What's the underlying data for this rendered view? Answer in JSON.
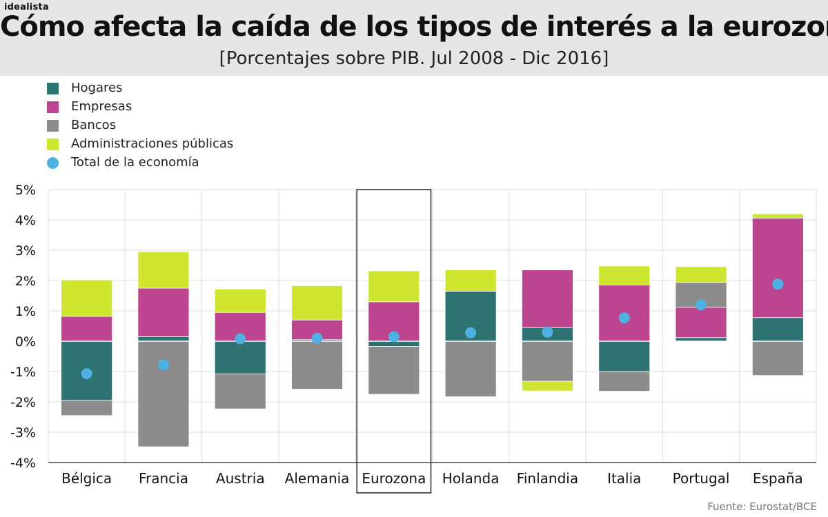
{
  "brand": "idealista",
  "header": {
    "title": "Cómo afecta la caída de los tipos de interés a la eurozona",
    "subtitle": "[Porcentajes sobre PIB. Jul 2008 - Dic 2016]"
  },
  "source": "Fuente: Eurostat/BCE",
  "colors": {
    "hogares": "#2e7372",
    "empresas": "#bd448f",
    "bancos": "#8c8c8c",
    "administraciones": "#cfe631",
    "total": "#4fb0e2",
    "grid": "#dddddd",
    "axis": "#222222"
  },
  "legend": [
    {
      "label": "Hogares",
      "color_key": "hogares",
      "shape": "square"
    },
    {
      "label": "Empresas",
      "color_key": "empresas",
      "shape": "square"
    },
    {
      "label": "Bancos",
      "color_key": "bancos",
      "shape": "square"
    },
    {
      "label": "Administraciones públicas",
      "color_key": "administraciones",
      "shape": "square"
    },
    {
      "label": "Total de la economía",
      "color_key": "total",
      "shape": "dot"
    }
  ],
  "chart_data": {
    "type": "bar",
    "stacked": true,
    "title": "Cómo afecta la caída de los tipos de interés a la eurozona",
    "subtitle": "[Porcentajes sobre PIB. Jul 2008 - Dic 2016]",
    "xlabel": "",
    "ylabel": "",
    "ylim": [
      -4,
      5
    ],
    "yticks": [
      -4,
      -3,
      -2,
      -1,
      0,
      1,
      2,
      3,
      4,
      5
    ],
    "ytick_labels": [
      "-4%",
      "-3%",
      "-2%",
      "-1%",
      "0%",
      "1%",
      "2%",
      "3%",
      "4%",
      "5%"
    ],
    "grid": true,
    "highlighted_category": "Eurozona",
    "categories": [
      "Bélgica",
      "Francia",
      "Austria",
      "Alemania",
      "Eurozona",
      "Holanda",
      "Finlandia",
      "Italia",
      "Portugal",
      "España"
    ],
    "series": [
      {
        "name": "Hogares",
        "color_key": "hogares",
        "values": [
          -1.95,
          0.15,
          -1.08,
          0.05,
          -0.17,
          1.65,
          0.45,
          -1.0,
          0.12,
          0.78
        ]
      },
      {
        "name": "Empresas",
        "color_key": "empresas",
        "values": [
          0.82,
          1.6,
          0.95,
          0.65,
          1.3,
          0.0,
          1.9,
          1.85,
          1.0,
          3.28
        ]
      },
      {
        "name": "Bancos",
        "color_key": "bancos",
        "values": [
          -0.5,
          -3.48,
          -1.15,
          -1.58,
          -1.58,
          -1.83,
          -1.32,
          -0.65,
          0.82,
          -1.13
        ]
      },
      {
        "name": "Administraciones públicas",
        "color_key": "administraciones",
        "values": [
          1.2,
          1.2,
          0.77,
          1.13,
          1.02,
          0.7,
          -0.32,
          0.63,
          0.52,
          0.14
        ]
      }
    ],
    "total": {
      "name": "Total de la economía",
      "color_key": "total",
      "values": [
        -1.07,
        -0.78,
        0.08,
        0.1,
        0.15,
        0.28,
        0.3,
        0.77,
        1.2,
        1.88
      ]
    }
  }
}
